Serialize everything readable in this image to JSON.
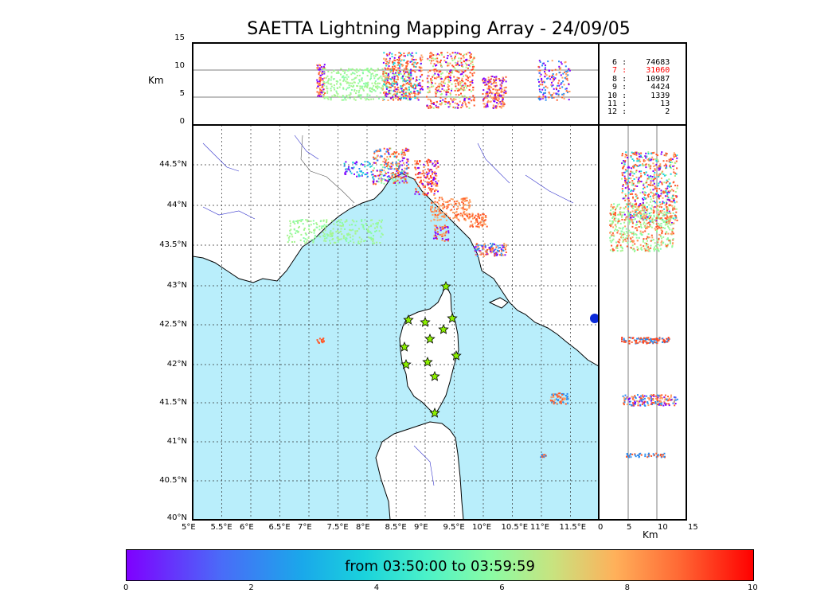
{
  "title": "SAETTA Lightning Mapping Array - 24/09/05",
  "top_panel": {
    "ylabel": "Km",
    "yticks": [
      "15",
      "10",
      "5",
      "0"
    ]
  },
  "side_panel": {
    "xlabel": "Km",
    "xticks": [
      "0",
      "5",
      "10",
      "15"
    ]
  },
  "map": {
    "lat_ticks": [
      "44.5°N",
      "44°N",
      "43.5°N",
      "43°N",
      "42.5°N",
      "42°N",
      "41.5°N",
      "41°N",
      "40.5°N",
      "40°N"
    ],
    "lon_ticks": [
      "5°E",
      "5.5°E",
      "6°E",
      "6.5°E",
      "7°E",
      "7.5°E",
      "8°E",
      "8.5°E",
      "9°E",
      "9.5°E",
      "10°E",
      "10.5°E",
      "11°E",
      "11.5°E"
    ],
    "sea_color": "#b9eefb",
    "station_icon": "star-icon"
  },
  "station_counts": [
    {
      "stations": "6",
      "sep": ":",
      "count": "74683",
      "color": "#000000"
    },
    {
      "stations": "7",
      "sep": ":",
      "count": "31060",
      "color": "#ff0000"
    },
    {
      "stations": "8",
      "sep": ":",
      "count": "10987",
      "color": "#000000"
    },
    {
      "stations": "9",
      "sep": ":",
      "count": "4424",
      "color": "#000000"
    },
    {
      "stations": "10",
      "sep": ":",
      "count": "1339",
      "color": "#000000"
    },
    {
      "stations": "11",
      "sep": ":",
      "count": "13",
      "color": "#000000"
    },
    {
      "stations": "12",
      "sep": ":",
      "count": "2",
      "color": "#000000"
    }
  ],
  "colorbar": {
    "label": "from 03:50:00 to 03:59:59",
    "ticks": [
      "0",
      "2",
      "4",
      "6",
      "8",
      "10"
    ]
  }
}
